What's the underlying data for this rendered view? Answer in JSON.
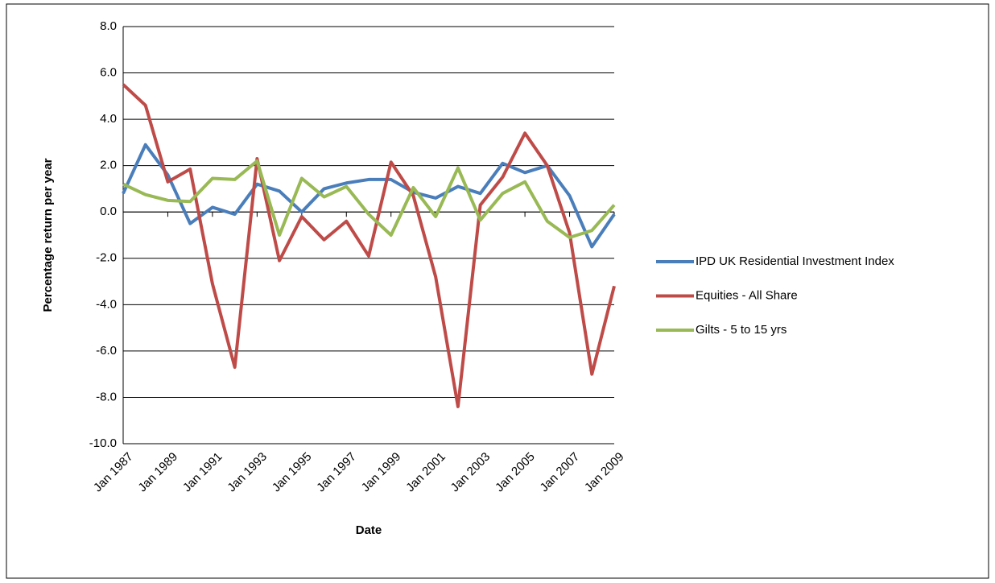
{
  "chart_data": {
    "type": "line",
    "categories": [
      "Jan 1987",
      null,
      "Jan 1989",
      null,
      "Jan 1991",
      null,
      "Jan 1993",
      null,
      "Jan 1995",
      null,
      "Jan 1997",
      null,
      "Jan 1999",
      null,
      "Jan 2001",
      null,
      "Jan 2003",
      null,
      "Jan 2005",
      null,
      "Jan 2007",
      null,
      "Jan 2009"
    ],
    "series": [
      {
        "name": "IPD UK Residential Investment Index",
        "color": "#4a7ebb",
        "values": [
          0.8,
          2.9,
          1.6,
          -0.5,
          0.2,
          -0.1,
          1.2,
          0.9,
          0.0,
          1.0,
          1.25,
          1.4,
          1.4,
          0.85,
          0.6,
          1.1,
          0.8,
          2.1,
          1.7,
          2.0,
          0.7,
          -1.5,
          -0.1
        ]
      },
      {
        "name": "Equities - All Share",
        "color": "#be4b48",
        "values": [
          5.5,
          4.6,
          1.3,
          1.85,
          -3.1,
          -6.7,
          2.3,
          -2.1,
          -0.2,
          -1.2,
          -0.4,
          -1.9,
          2.15,
          0.7,
          -2.8,
          -8.4,
          0.3,
          1.5,
          3.4,
          2.0,
          -0.9,
          -7.0,
          -3.2
        ]
      },
      {
        "name": "Gilts - 5 to 15 yrs",
        "color": "#98b954",
        "values": [
          1.2,
          0.75,
          0.5,
          0.45,
          1.45,
          1.4,
          2.2,
          -1.0,
          1.45,
          0.65,
          1.1,
          -0.1,
          -1.0,
          1.05,
          -0.2,
          1.9,
          -0.35,
          0.8,
          1.3,
          -0.4,
          -1.1,
          -0.8,
          0.3
        ]
      }
    ],
    "xlabel": "Date",
    "ylabel": "Percentage return per year",
    "ylim": [
      -10,
      8
    ],
    "yticks": [
      {
        "value": -10,
        "label": "-10.0"
      },
      {
        "value": -8,
        "label": "-8.0"
      },
      {
        "value": -6,
        "label": "-6.0"
      },
      {
        "value": -4,
        "label": "-4.0"
      },
      {
        "value": -2,
        "label": "-2.0"
      },
      {
        "value": 0,
        "label": "0.0"
      },
      {
        "value": 2,
        "label": "2.0"
      },
      {
        "value": 4,
        "label": "4.0"
      },
      {
        "value": 6,
        "label": "6.0"
      },
      {
        "value": 8,
        "label": "8.0"
      }
    ],
    "grid": true,
    "legend": "right"
  }
}
